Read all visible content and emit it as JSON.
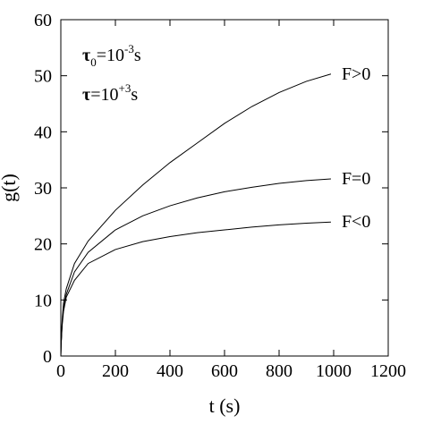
{
  "chart_data": {
    "type": "line",
    "xlabel": "t (s)",
    "ylabel": "g(t)",
    "xlim": [
      0,
      1200
    ],
    "ylim": [
      0,
      60
    ],
    "xticks": [
      0,
      200,
      400,
      600,
      800,
      1000,
      1200
    ],
    "yticks": [
      0,
      10,
      20,
      30,
      40,
      50,
      60
    ],
    "grid": false,
    "annotations": {
      "tau0": {
        "symbol": "τ",
        "subscript": "0",
        "equals": "=10",
        "exponent": "-3",
        "unit": "s"
      },
      "tau": {
        "symbol": "τ",
        "equals": "=10",
        "exponent": "+3",
        "unit": "s"
      }
    },
    "series": [
      {
        "name": "F>0",
        "x": [
          0,
          1,
          5,
          10,
          20,
          50,
          100,
          200,
          300,
          400,
          500,
          600,
          700,
          800,
          900,
          990
        ],
        "y": [
          0,
          2,
          6.5,
          9.5,
          12,
          16.5,
          20.5,
          26,
          30.5,
          34.5,
          38,
          41.5,
          44.5,
          47,
          49,
          50.3
        ]
      },
      {
        "name": "F=0",
        "x": [
          0,
          1,
          5,
          10,
          20,
          50,
          100,
          200,
          300,
          400,
          500,
          600,
          700,
          800,
          900,
          990
        ],
        "y": [
          0,
          2,
          6,
          8.5,
          11,
          15,
          18.5,
          22.5,
          25,
          26.8,
          28.2,
          29.3,
          30.1,
          30.8,
          31.3,
          31.6
        ]
      },
      {
        "name": "F<0",
        "x": [
          0,
          1,
          5,
          10,
          20,
          50,
          100,
          200,
          300,
          400,
          500,
          600,
          700,
          800,
          900,
          990
        ],
        "y": [
          0,
          2,
          5.5,
          8,
          10.5,
          13.5,
          16.5,
          19,
          20.4,
          21.3,
          22,
          22.5,
          23,
          23.4,
          23.7,
          23.9
        ]
      }
    ]
  }
}
